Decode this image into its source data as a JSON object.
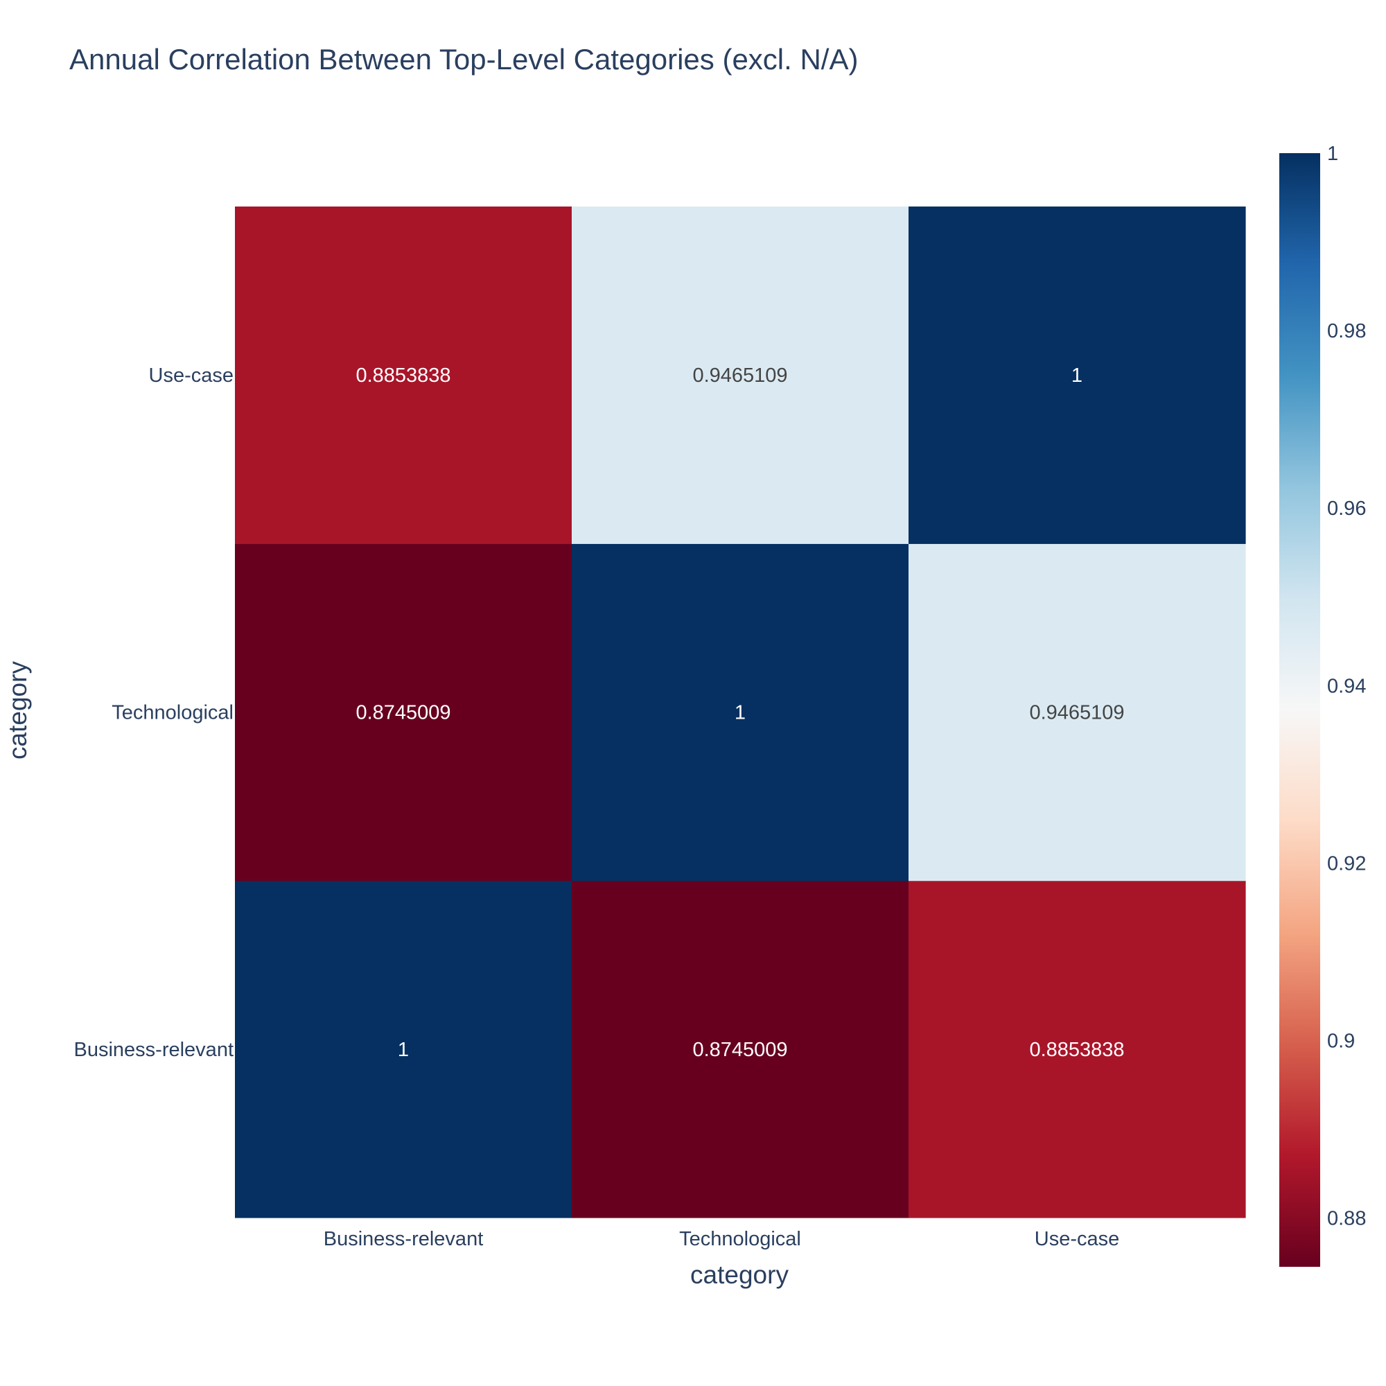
{
  "chart_data": {
    "type": "heatmap",
    "title": "Annual Correlation Between Top-Level Categories (excl. N/A)",
    "xlabel": "category",
    "ylabel": "category",
    "x_categories": [
      "Business-relevant",
      "Technological",
      "Use-case"
    ],
    "y_categories": [
      "Business-relevant",
      "Technological",
      "Use-case"
    ],
    "z": [
      [
        "1",
        "0.8745009",
        "0.8853838"
      ],
      [
        "0.8745009",
        "1",
        "0.9465109"
      ],
      [
        "0.8853838",
        "0.9465109",
        "1"
      ]
    ],
    "colorscale": "RdBu",
    "zrange": [
      0.8745009,
      1
    ],
    "colorbar": {
      "tick_values": [
        0.88,
        0.9,
        0.92,
        0.94,
        0.96,
        0.98,
        1
      ],
      "tick_labels": [
        "0.88",
        "0.9",
        "0.92",
        "0.94",
        "0.96",
        "0.98",
        "1"
      ]
    }
  }
}
